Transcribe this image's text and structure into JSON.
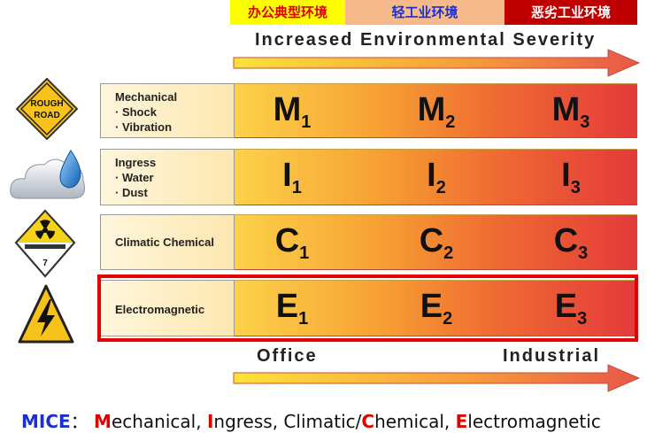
{
  "header": {
    "office": "办公典型环境",
    "light_industrial": "轻工业环境",
    "harsh_industrial": "恶劣工业环境"
  },
  "severity_title": "Increased Environmental Severity",
  "rows": [
    {
      "title": "Mechanical",
      "items": [
        "· Shock",
        "· Vibration"
      ],
      "cells": [
        [
          "M",
          "1"
        ],
        [
          "M",
          "2"
        ],
        [
          "M",
          "3"
        ]
      ],
      "icon": "rough-road-sign-icon",
      "icon_text": "ROUGH ROAD"
    },
    {
      "title": "Ingress",
      "items": [
        "· Water",
        "· Dust"
      ],
      "cells": [
        [
          "I",
          "1"
        ],
        [
          "I",
          "2"
        ],
        [
          "I",
          "3"
        ]
      ],
      "icon": "cloud-water-drop-icon"
    },
    {
      "title": "Climatic Chemical",
      "items": [],
      "cells": [
        [
          "C",
          "1"
        ],
        [
          "C",
          "2"
        ],
        [
          "C",
          "3"
        ]
      ],
      "icon": "radioactive-placard-icon",
      "icon_text": "7"
    },
    {
      "title": "Electromagnetic",
      "items": [],
      "cells": [
        [
          "E",
          "1"
        ],
        [
          "E",
          "2"
        ],
        [
          "E",
          "3"
        ]
      ],
      "icon": "high-voltage-sign-icon"
    }
  ],
  "bottom": {
    "left": "Office",
    "right": "Industrial"
  },
  "legend": {
    "acronym": "MICE",
    "sep": "：",
    "parts": [
      {
        "letter": "M",
        "rest": "echanical, "
      },
      {
        "letter": "I",
        "rest": "ngress, Climatic/"
      },
      {
        "letter": "C",
        "rest": "hemical, "
      },
      {
        "letter": "E",
        "rest": "lectromagnetic"
      }
    ]
  },
  "colors": {
    "highlight": "#e60000",
    "arrow": "#e8664a",
    "band_start": "#fdd24a",
    "band_end": "#e43a3a"
  }
}
